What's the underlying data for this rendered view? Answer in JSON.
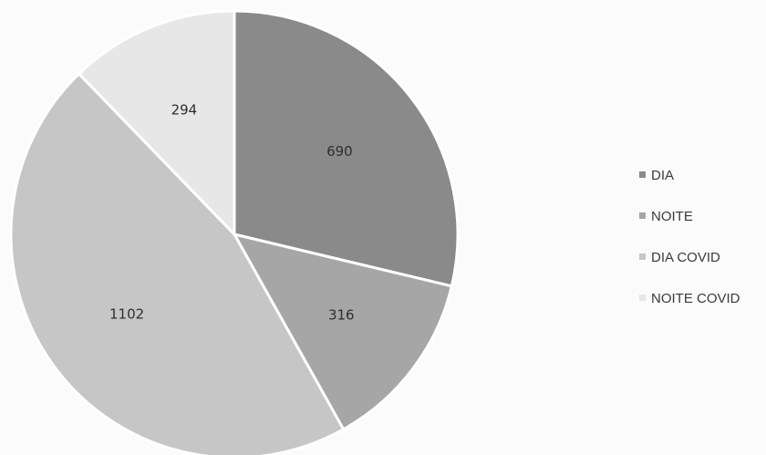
{
  "chart_data": {
    "type": "pie",
    "title": "",
    "legend_position": "right",
    "start_angle_deg": 0,
    "direction": "clockwise",
    "slices": [
      {
        "label": "DIA",
        "value": 690,
        "color": "#8a8a8a"
      },
      {
        "label": "NOITE",
        "value": 316,
        "color": "#a6a6a6"
      },
      {
        "label": "DIA COVID",
        "value": 1102,
        "color": "#c6c6c6"
      },
      {
        "label": "NOITE COVID",
        "value": 294,
        "color": "#e7e7e7"
      }
    ]
  }
}
